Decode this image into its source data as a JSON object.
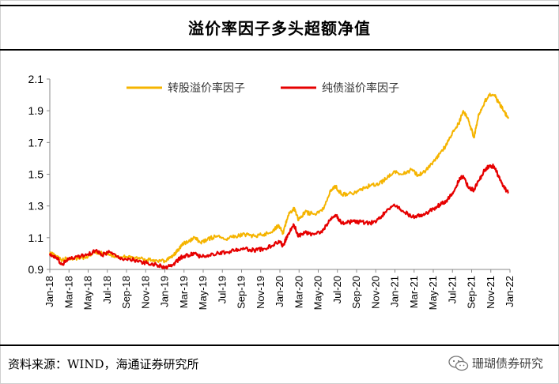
{
  "title": "溢价率因子多头超额净值",
  "source": "资料来源：WIND，海通证券研究所",
  "brand": {
    "label": "珊瑚债券研究",
    "icon": "wechat-icon"
  },
  "colors": {
    "series_1": "#F5B400",
    "series_2": "#E60000"
  },
  "chart_data": {
    "type": "line",
    "title": "溢价率因子多头超额净值",
    "xlabel": "",
    "ylabel": "",
    "ylim": [
      0.9,
      2.1
    ],
    "yticks": [
      0.9,
      1.1,
      1.3,
      1.5,
      1.7,
      1.9,
      2.1
    ],
    "xlim": [
      "2018-01-01",
      "2022-02-15"
    ],
    "x_tick_labels": [
      "Jan-18",
      "Mar-18",
      "May-18",
      "Jul-18",
      "Sep-18",
      "Nov-18",
      "Jan-19",
      "Mar-19",
      "May-19",
      "Jul-19",
      "Sep-19",
      "Nov-19",
      "Jan-20",
      "Mar-20",
      "May-20",
      "Jul-20",
      "Sep-20",
      "Nov-20",
      "Jan-21",
      "Mar-21",
      "May-21",
      "Jul-21",
      "Sep-21",
      "Nov-21",
      "Jan-22"
    ],
    "grid": false,
    "legend_position": "top",
    "series": [
      {
        "name": "转股溢价率因子",
        "color": "#F5B400",
        "points": [
          [
            "2018-01-01",
            1.0
          ],
          [
            "2018-01-20",
            0.99
          ],
          [
            "2018-02-10",
            0.96
          ],
          [
            "2018-03-01",
            0.97
          ],
          [
            "2018-04-01",
            0.97
          ],
          [
            "2018-05-01",
            0.98
          ],
          [
            "2018-06-01",
            1.01
          ],
          [
            "2018-06-20",
            1.0
          ],
          [
            "2018-07-15",
            0.99
          ],
          [
            "2018-08-15",
            0.98
          ],
          [
            "2018-09-15",
            0.98
          ],
          [
            "2018-10-15",
            0.97
          ],
          [
            "2018-11-15",
            0.96
          ],
          [
            "2018-12-15",
            0.96
          ],
          [
            "2019-01-15",
            0.95
          ],
          [
            "2019-02-10",
            0.99
          ],
          [
            "2019-02-25",
            1.02
          ],
          [
            "2019-03-10",
            1.06
          ],
          [
            "2019-04-01",
            1.08
          ],
          [
            "2019-04-20",
            1.1
          ],
          [
            "2019-05-10",
            1.07
          ],
          [
            "2019-06-01",
            1.09
          ],
          [
            "2019-07-01",
            1.11
          ],
          [
            "2019-08-01",
            1.09
          ],
          [
            "2019-09-01",
            1.11
          ],
          [
            "2019-10-01",
            1.12
          ],
          [
            "2019-11-01",
            1.11
          ],
          [
            "2019-12-01",
            1.12
          ],
          [
            "2020-01-01",
            1.14
          ],
          [
            "2020-01-20",
            1.18
          ],
          [
            "2020-02-03",
            1.13
          ],
          [
            "2020-02-20",
            1.24
          ],
          [
            "2020-03-10",
            1.29
          ],
          [
            "2020-03-25",
            1.21
          ],
          [
            "2020-04-15",
            1.26
          ],
          [
            "2020-05-15",
            1.25
          ],
          [
            "2020-06-15",
            1.28
          ],
          [
            "2020-07-08",
            1.4
          ],
          [
            "2020-07-25",
            1.42
          ],
          [
            "2020-08-15",
            1.37
          ],
          [
            "2020-09-15",
            1.38
          ],
          [
            "2020-10-15",
            1.4
          ],
          [
            "2020-11-15",
            1.43
          ],
          [
            "2020-12-15",
            1.44
          ],
          [
            "2021-01-10",
            1.48
          ],
          [
            "2021-02-01",
            1.52
          ],
          [
            "2021-03-01",
            1.5
          ],
          [
            "2021-04-01",
            1.53
          ],
          [
            "2021-04-20",
            1.49
          ],
          [
            "2021-05-15",
            1.52
          ],
          [
            "2021-06-10",
            1.58
          ],
          [
            "2021-07-01",
            1.63
          ],
          [
            "2021-07-20",
            1.68
          ],
          [
            "2021-08-10",
            1.76
          ],
          [
            "2021-09-01",
            1.82
          ],
          [
            "2021-09-15",
            1.9
          ],
          [
            "2021-10-01",
            1.85
          ],
          [
            "2021-10-20",
            1.73
          ],
          [
            "2021-11-05",
            1.88
          ],
          [
            "2021-11-25",
            1.96
          ],
          [
            "2021-12-10",
            2.0
          ],
          [
            "2021-12-25",
            2.0
          ],
          [
            "2022-01-10",
            1.95
          ],
          [
            "2022-01-25",
            1.9
          ],
          [
            "2022-02-10",
            1.85
          ]
        ]
      },
      {
        "name": "纯债溢价率因子",
        "color": "#E60000",
        "points": [
          [
            "2018-01-01",
            1.0
          ],
          [
            "2018-01-20",
            0.98
          ],
          [
            "2018-02-10",
            0.93
          ],
          [
            "2018-03-01",
            0.97
          ],
          [
            "2018-04-01",
            0.98
          ],
          [
            "2018-05-01",
            0.99
          ],
          [
            "2018-06-01",
            1.02
          ],
          [
            "2018-06-20",
            0.99
          ],
          [
            "2018-07-15",
            1.01
          ],
          [
            "2018-08-15",
            0.97
          ],
          [
            "2018-09-15",
            0.97
          ],
          [
            "2018-10-15",
            0.95
          ],
          [
            "2018-11-15",
            0.94
          ],
          [
            "2018-12-15",
            0.93
          ],
          [
            "2019-01-15",
            0.91
          ],
          [
            "2019-02-10",
            0.93
          ],
          [
            "2019-02-25",
            0.96
          ],
          [
            "2019-03-10",
            0.98
          ],
          [
            "2019-04-01",
            0.99
          ],
          [
            "2019-04-20",
            1.0
          ],
          [
            "2019-05-10",
            0.98
          ],
          [
            "2019-06-01",
            0.99
          ],
          [
            "2019-07-01",
            1.0
          ],
          [
            "2019-08-01",
            1.01
          ],
          [
            "2019-09-01",
            1.02
          ],
          [
            "2019-10-01",
            1.03
          ],
          [
            "2019-11-01",
            1.02
          ],
          [
            "2019-12-01",
            1.03
          ],
          [
            "2020-01-01",
            1.05
          ],
          [
            "2020-01-20",
            1.08
          ],
          [
            "2020-02-03",
            1.05
          ],
          [
            "2020-02-20",
            1.12
          ],
          [
            "2020-03-10",
            1.18
          ],
          [
            "2020-03-25",
            1.11
          ],
          [
            "2020-04-15",
            1.13
          ],
          [
            "2020-05-15",
            1.12
          ],
          [
            "2020-06-15",
            1.15
          ],
          [
            "2020-07-08",
            1.22
          ],
          [
            "2020-07-25",
            1.24
          ],
          [
            "2020-08-15",
            1.19
          ],
          [
            "2020-09-15",
            1.2
          ],
          [
            "2020-10-15",
            1.2
          ],
          [
            "2020-11-15",
            1.19
          ],
          [
            "2020-12-15",
            1.22
          ],
          [
            "2021-01-10",
            1.28
          ],
          [
            "2021-02-01",
            1.31
          ],
          [
            "2021-03-01",
            1.27
          ],
          [
            "2021-04-01",
            1.23
          ],
          [
            "2021-04-20",
            1.24
          ],
          [
            "2021-05-15",
            1.25
          ],
          [
            "2021-06-10",
            1.28
          ],
          [
            "2021-07-01",
            1.31
          ],
          [
            "2021-07-20",
            1.33
          ],
          [
            "2021-08-10",
            1.38
          ],
          [
            "2021-09-01",
            1.46
          ],
          [
            "2021-09-15",
            1.49
          ],
          [
            "2021-10-01",
            1.42
          ],
          [
            "2021-10-20",
            1.4
          ],
          [
            "2021-11-05",
            1.46
          ],
          [
            "2021-11-25",
            1.53
          ],
          [
            "2021-12-10",
            1.55
          ],
          [
            "2021-12-25",
            1.55
          ],
          [
            "2022-01-10",
            1.48
          ],
          [
            "2022-01-25",
            1.42
          ],
          [
            "2022-02-10",
            1.38
          ]
        ]
      }
    ]
  }
}
